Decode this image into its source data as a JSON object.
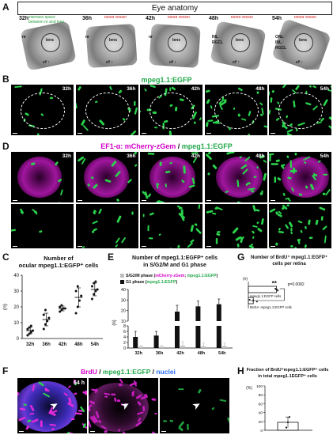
{
  "panelA": {
    "letter": "A",
    "title": "Eye anatomy",
    "images": [
      {
        "time": "32h",
        "note": "interface space\nbetween nr and lens",
        "labels": [
          "nr",
          "lens"
        ],
        "cf": "cf"
      },
      {
        "time": "36h",
        "note": "blood vessel",
        "labels": [
          "nr",
          "lens"
        ],
        "cf": "cf"
      },
      {
        "time": "42h",
        "note": "blood vessel",
        "labels": [
          "nr",
          "lens"
        ],
        "cf": "cf"
      },
      {
        "time": "48h",
        "note": "blood vessel",
        "labels": [
          "lens",
          "INL",
          "RGCL"
        ],
        "cf": "cf"
      },
      {
        "time": "54h",
        "note": "blood vessel",
        "labels": [
          "lens",
          "ONL",
          "INL",
          "RGCL"
        ],
        "cf": "cf"
      }
    ]
  },
  "panelB": {
    "letter": "B",
    "title": "mpeg1.1:EGFP",
    "times": [
      "32h",
      "36h",
      "42h",
      "48h",
      "54h"
    ]
  },
  "panelD": {
    "letter": "D",
    "title_magenta": "EF1-α: mCherry-zGem",
    "title_sep": " / ",
    "title_green": "mpeg1.1:EGFP",
    "times": [
      "32h",
      "36h",
      "42h",
      "48h",
      "54h"
    ]
  },
  "panelC": {
    "letter": "C",
    "title": "Number of\nocular mpeg1.1:EGFP⁺ cells",
    "ylabel": "(n)",
    "yticks": [
      "0",
      "10",
      "20",
      "30",
      "40"
    ],
    "chart_data": {
      "type": "scatter",
      "title": "Number of ocular mpeg1.1:EGFP+ cells",
      "ylabel": "(n)",
      "ylim": [
        0,
        40
      ],
      "categories": [
        "32h",
        "36h",
        "42h",
        "48h",
        "54h"
      ],
      "means": [
        5,
        12,
        19,
        26,
        31
      ],
      "errors": [
        2,
        4,
        1.5,
        6,
        4
      ],
      "points": [
        [
          2,
          3,
          4,
          5,
          6,
          7,
          8
        ],
        [
          6,
          9,
          11,
          13,
          15,
          18
        ],
        [
          17,
          18,
          19,
          19,
          20,
          21
        ],
        [
          16,
          20,
          24,
          27,
          30,
          33
        ],
        [
          25,
          28,
          30,
          31,
          33,
          35,
          36
        ]
      ],
      "color": "#111111"
    }
  },
  "panelE": {
    "letter": "E",
    "title": "Number of mpeg1.1:EGFP⁺ cells\nin S/G2/M and G1 phase",
    "legend1_prefix": "S/G2/M phase (",
    "legend1_magenta": "mCherry-zGem",
    "legend1_mid": "; ",
    "legend1_green": "mpeg1.1:EGFP",
    "legend1_suffix": ")",
    "legend2_prefix": "G1 phase (",
    "legend2_green": "mpeg1.1:EGFP",
    "legend2_suffix": ")",
    "ylabel": "(n)",
    "yticks_top": [
      "10",
      "20",
      "30",
      "40"
    ],
    "yticks_bottom": [
      "0",
      "2",
      "4",
      "6",
      "8"
    ],
    "chart_data": {
      "type": "bar",
      "title": "Number of mpeg1.1:EGFP+ cells in S/G2/M and G1 phase",
      "ylabel": "(n)",
      "categories": [
        "32h",
        "36h",
        "42h",
        "48h",
        "54h"
      ],
      "series": [
        {
          "name": "S/G2/M phase (mCherry-zGem; mpeg1.1:EGFP)",
          "values": [
            0.5,
            0.5,
            0.8,
            0.6,
            0.7
          ],
          "errors": [
            0.4,
            0.4,
            1.5,
            1.2,
            1.1
          ],
          "color": "#bfbfbf"
        },
        {
          "name": "G1 phase (mpeg1.1:EGFP)",
          "values": [
            4,
            4.5,
            19,
            24,
            26
          ],
          "errors": [
            2,
            1.5,
            6,
            5,
            5
          ],
          "color": "#111111"
        }
      ],
      "broken_axis": true
    }
  },
  "panelG": {
    "letter": "G",
    "title": "Number of BrdU⁺ mpeg1.1:EGFP⁺\ncells per retina",
    "ylabel": "(n)",
    "sig": "**",
    "pvalue": "p=0.0082",
    "chart_data": {
      "type": "bar",
      "orientation": "horizontal",
      "title": "Number of BrdU+ mpeg1.1:EGFP+ cells per retina",
      "ylabel": "(n)",
      "categories": [
        "mpeg1.1:EGFP cells",
        "BrdU+ mpeg1.1:EGFP cells"
      ],
      "values": [
        11.5,
        2
      ],
      "errors": [
        0.6,
        1.2
      ],
      "points": [
        [
          11,
          11.5,
          12
        ],
        [
          0.5,
          2,
          3.5
        ]
      ],
      "xlim": [
        0,
        20
      ]
    }
  },
  "panelF": {
    "letter": "F",
    "title_magenta": "BrdU",
    "sep1": " / ",
    "title_green": "mpeg1.1:EGFP",
    "sep2": " / ",
    "title_blue": "nuclei",
    "time": "54 h"
  },
  "panelH": {
    "letter": "H",
    "title": "Fraction of BrdU⁺mpeg1.1:EGFP⁺ cells\nin total mpeg1.1EGFP⁺ cells",
    "ylabel": "(%)",
    "yticks": [
      "0",
      "20",
      "40",
      "60",
      "80",
      "100"
    ],
    "chart_data": {
      "type": "bar",
      "title": "Fraction of BrdU+mpeg1.1:EGFP+ cells in total mpeg1.1EGFP+ cells",
      "ylabel": "(%)",
      "ylim": [
        0,
        100
      ],
      "categories": [
        ""
      ],
      "values": [
        18
      ],
      "errors": [
        12
      ],
      "points": [
        [
          6,
          18,
          30
        ]
      ]
    }
  }
}
